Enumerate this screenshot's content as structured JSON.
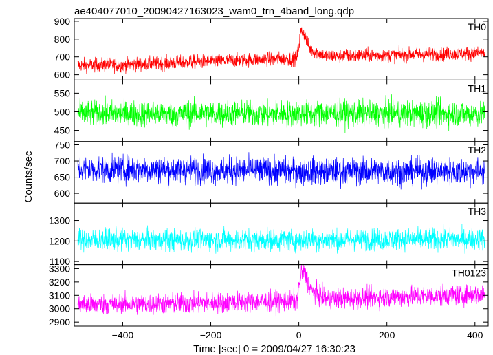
{
  "chart_data": {
    "type": "line",
    "title": "ae404077010_20090427163023_wam0_trn_4band_long.qdp",
    "xlabel": "Time [sec] 0 = 2009/04/27 16:30:23",
    "ylabel": "Counts/sec",
    "xlim": [
      -510,
      430
    ],
    "x_ticks": [
      -400,
      -200,
      0,
      200,
      400
    ],
    "x_tick_labels": [
      "−400",
      "−200",
      "0",
      "200",
      "400"
    ],
    "x_range": [
      -502,
      422
    ],
    "panels": [
      {
        "name": "TH0",
        "color": "#ff0000",
        "ylim": [
          570,
          915
        ],
        "y_ticks": [
          600,
          700,
          800,
          900
        ],
        "y_tick_labels": [
          "600",
          "700",
          "800",
          "900"
        ],
        "trend": [
          [
            -502,
            655
          ],
          [
            -400,
            655
          ],
          [
            -250,
            670
          ],
          [
            -100,
            685
          ],
          [
            -5,
            690
          ],
          [
            0,
            760
          ],
          [
            4,
            840
          ],
          [
            10,
            840
          ],
          [
            25,
            745
          ],
          [
            60,
            705
          ],
          [
            150,
            708
          ],
          [
            300,
            715
          ],
          [
            422,
            720
          ]
        ],
        "noise": 28
      },
      {
        "name": "TH1",
        "color": "#00ff00",
        "ylim": [
          420,
          585
        ],
        "y_ticks": [
          450,
          500,
          550
        ],
        "y_tick_labels": [
          "450",
          "500",
          "550"
        ],
        "trend": [
          [
            -502,
            495
          ],
          [
            422,
            495
          ]
        ],
        "noise": 25
      },
      {
        "name": "TH2",
        "color": "#0000ff",
        "ylim": [
          570,
          760
        ],
        "y_ticks": [
          600,
          650,
          700,
          750
        ],
        "y_tick_labels": [
          "600",
          "650",
          "700",
          "750"
        ],
        "trend": [
          [
            -502,
            675
          ],
          [
            -200,
            672
          ],
          [
            0,
            668
          ],
          [
            422,
            668
          ]
        ],
        "noise": 30
      },
      {
        "name": "TH3",
        "color": "#00ffff",
        "ylim": [
          1085,
          1385
        ],
        "y_ticks": [
          1100,
          1200,
          1300
        ],
        "y_tick_labels": [
          "1100",
          "1200",
          "1300"
        ],
        "trend": [
          [
            -502,
            1205
          ],
          [
            0,
            1205
          ],
          [
            422,
            1210
          ]
        ],
        "noise": 38
      },
      {
        "name": "TH0123",
        "color": "#ff00ff",
        "ylim": [
          2870,
          3330
        ],
        "y_ticks": [
          2900,
          3000,
          3100,
          3200,
          3300
        ],
        "y_tick_labels": [
          "2900",
          "3000",
          "3100",
          "3200",
          "3300"
        ],
        "trend": [
          [
            -502,
            3030
          ],
          [
            -250,
            3040
          ],
          [
            -5,
            3060
          ],
          [
            0,
            3160
          ],
          [
            5,
            3270
          ],
          [
            12,
            3270
          ],
          [
            30,
            3130
          ],
          [
            60,
            3075
          ],
          [
            200,
            3085
          ],
          [
            422,
            3110
          ]
        ],
        "noise": 55
      }
    ],
    "grid": false,
    "legend": "panel labels top-right"
  }
}
